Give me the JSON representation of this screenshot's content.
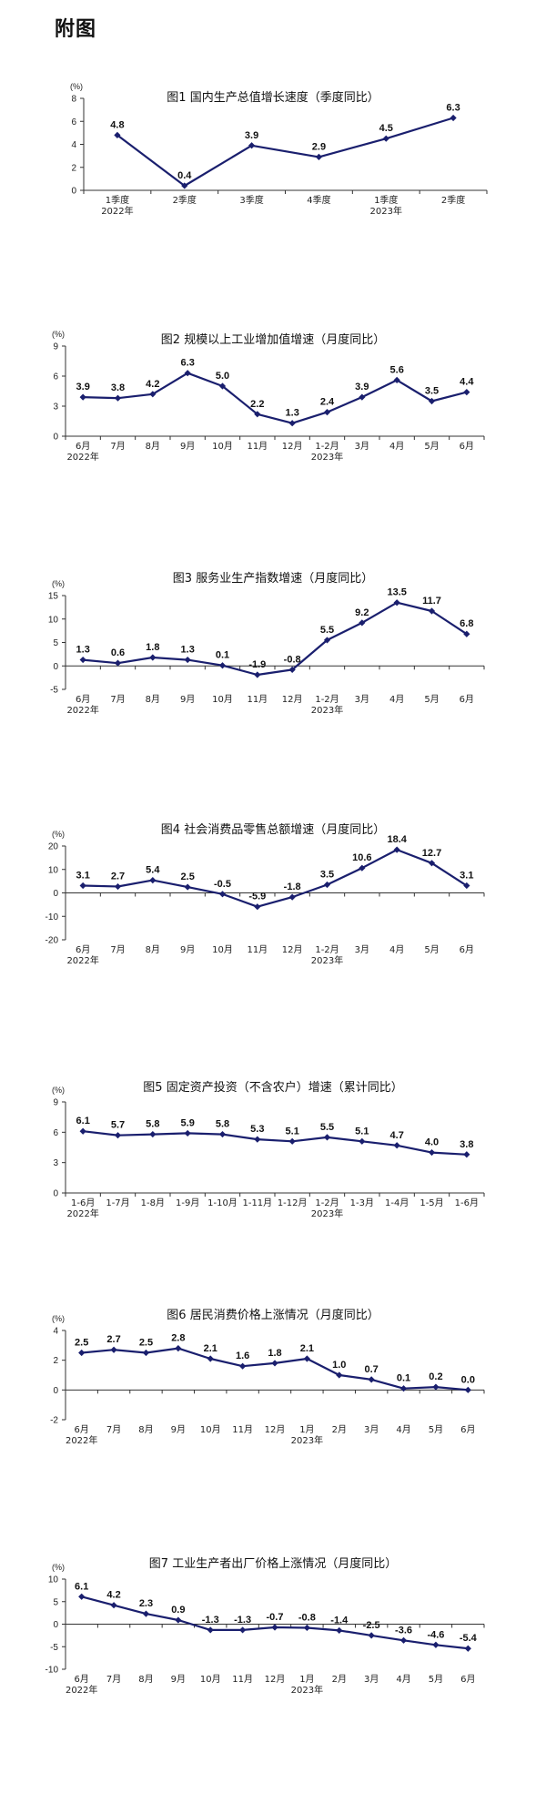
{
  "heading": "附图",
  "style": {
    "line_color": "#1a1f6e",
    "axis_color": "#333333"
  },
  "chart_data": [
    {
      "type": "line",
      "title": "图1    国内生产总值增长速度（季度同比）",
      "unit": "(%)",
      "categories": [
        "1季度",
        "2季度",
        "3季度",
        "4季度",
        "1季度",
        "2季度"
      ],
      "category_years": [
        "2022年",
        "",
        "",
        "",
        "2023年",
        ""
      ],
      "values": [
        4.8,
        0.4,
        3.9,
        2.9,
        4.5,
        6.3
      ],
      "labels": [
        "4.8",
        "0.4",
        "3.9",
        "2.9",
        "4.5",
        "6.3"
      ],
      "yticks": [
        0,
        2,
        4,
        6,
        8
      ],
      "ylim": [
        0,
        8
      ]
    },
    {
      "type": "line",
      "title": "图2    规模以上工业增加值增速（月度同比）",
      "unit": "(%)",
      "categories": [
        "6月",
        "7月",
        "8月",
        "9月",
        "10月",
        "11月",
        "12月",
        "1-2月",
        "3月",
        "4月",
        "5月",
        "6月"
      ],
      "category_years": [
        "2022年",
        "",
        "",
        "",
        "",
        "",
        "",
        "2023年",
        "",
        "",
        "",
        ""
      ],
      "values": [
        3.9,
        3.8,
        4.2,
        6.3,
        5.0,
        2.2,
        1.3,
        2.4,
        3.9,
        5.6,
        3.5,
        4.4
      ],
      "labels": [
        "3.9",
        "3.8",
        "4.2",
        "6.3",
        "5.0",
        "2.2",
        "1.3",
        "2.4",
        "3.9",
        "5.6",
        "3.5",
        "4.4"
      ],
      "yticks": [
        0,
        3,
        6,
        9
      ],
      "ylim": [
        0,
        9
      ]
    },
    {
      "type": "line",
      "title": "图3    服务业生产指数增速（月度同比）",
      "unit": "(%)",
      "categories": [
        "6月",
        "7月",
        "8月",
        "9月",
        "10月",
        "11月",
        "12月",
        "1-2月",
        "3月",
        "4月",
        "5月",
        "6月"
      ],
      "category_years": [
        "2022年",
        "",
        "",
        "",
        "",
        "",
        "",
        "2023年",
        "",
        "",
        "",
        ""
      ],
      "values": [
        1.3,
        0.6,
        1.8,
        1.3,
        0.1,
        -1.9,
        -0.8,
        5.5,
        9.2,
        13.5,
        11.7,
        6.8
      ],
      "labels": [
        "1.3",
        "0.6",
        "1.8",
        "1.3",
        "0.1",
        "-1.9",
        "-0.8",
        "5.5",
        "9.2",
        "13.5",
        "11.7",
        "6.8"
      ],
      "yticks": [
        -5,
        0,
        5,
        10,
        15
      ],
      "ylim": [
        -5,
        15
      ]
    },
    {
      "type": "line",
      "title": "图4    社会消费品零售总额增速（月度同比）",
      "unit": "(%)",
      "categories": [
        "6月",
        "7月",
        "8月",
        "9月",
        "10月",
        "11月",
        "12月",
        "1-2月",
        "3月",
        "4月",
        "5月",
        "6月"
      ],
      "category_years": [
        "2022年",
        "",
        "",
        "",
        "",
        "",
        "",
        "2023年",
        "",
        "",
        "",
        ""
      ],
      "values": [
        3.1,
        2.7,
        5.4,
        2.5,
        -0.5,
        -5.9,
        -1.8,
        3.5,
        10.6,
        18.4,
        12.7,
        3.1
      ],
      "labels": [
        "3.1",
        "2.7",
        "5.4",
        "2.5",
        "-0.5",
        "-5.9",
        "-1.8",
        "3.5",
        "10.6",
        "18.4",
        "12.7",
        "3.1"
      ],
      "yticks": [
        -20,
        -10,
        0,
        10,
        20
      ],
      "ylim": [
        -20,
        20
      ]
    },
    {
      "type": "line",
      "title": "图5    固定资产投资（不含农户）增速（累计同比）",
      "unit": "(%)",
      "categories": [
        "1-6月",
        "1-7月",
        "1-8月",
        "1-9月",
        "1-10月",
        "1-11月",
        "1-12月",
        "1-2月",
        "1-3月",
        "1-4月",
        "1-5月",
        "1-6月"
      ],
      "category_years": [
        "2022年",
        "",
        "",
        "",
        "",
        "",
        "",
        "2023年",
        "",
        "",
        "",
        ""
      ],
      "values": [
        6.1,
        5.7,
        5.8,
        5.9,
        5.8,
        5.3,
        5.1,
        5.5,
        5.1,
        4.7,
        4.0,
        3.8
      ],
      "labels": [
        "6.1",
        "5.7",
        "5.8",
        "5.9",
        "5.8",
        "5.3",
        "5.1",
        "5.5",
        "5.1",
        "4.7",
        "4.0",
        "3.8"
      ],
      "yticks": [
        0,
        3,
        6,
        9
      ],
      "ylim": [
        0,
        9
      ]
    },
    {
      "type": "line",
      "title": "图6    居民消费价格上涨情况（月度同比）",
      "unit": "(%)",
      "categories": [
        "6月",
        "7月",
        "8月",
        "9月",
        "10月",
        "11月",
        "12月",
        "1月",
        "2月",
        "3月",
        "4月",
        "5月",
        "6月"
      ],
      "category_years": [
        "2022年",
        "",
        "",
        "",
        "",
        "",
        "",
        "2023年",
        "",
        "",
        "",
        "",
        ""
      ],
      "values": [
        2.5,
        2.7,
        2.5,
        2.8,
        2.1,
        1.6,
        1.8,
        2.1,
        1.0,
        0.7,
        0.1,
        0.2,
        0.0
      ],
      "labels": [
        "2.5",
        "2.7",
        "2.5",
        "2.8",
        "2.1",
        "1.6",
        "1.8",
        "2.1",
        "1.0",
        "0.7",
        "0.1",
        "0.2",
        "0.0"
      ],
      "yticks": [
        -2,
        0,
        2,
        4
      ],
      "ylim": [
        -2,
        4
      ]
    },
    {
      "type": "line",
      "title": "图7    工业生产者出厂价格上涨情况（月度同比）",
      "unit": "(%)",
      "categories": [
        "6月",
        "7月",
        "8月",
        "9月",
        "10月",
        "11月",
        "12月",
        "1月",
        "2月",
        "3月",
        "4月",
        "5月",
        "6月"
      ],
      "category_years": [
        "2022年",
        "",
        "",
        "",
        "",
        "",
        "",
        "2023年",
        "",
        "",
        "",
        "",
        ""
      ],
      "values": [
        6.1,
        4.2,
        2.3,
        0.9,
        -1.3,
        -1.3,
        -0.7,
        -0.8,
        -1.4,
        -2.5,
        -3.6,
        -4.6,
        -5.4
      ],
      "labels": [
        "6.1",
        "4.2",
        "2.3",
        "0.9",
        "-1.3",
        "-1.3",
        "-0.7",
        "-0.8",
        "-1.4",
        "-2.5",
        "-3.6",
        "-4.6",
        "-5.4"
      ],
      "yticks": [
        -10,
        -5,
        0,
        5,
        10
      ],
      "ylim": [
        -10,
        10
      ]
    }
  ]
}
